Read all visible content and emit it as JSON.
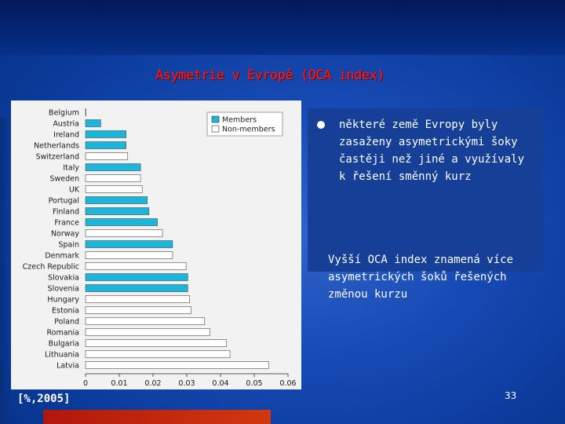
{
  "slide": {
    "title": "Asymetrie v Evropě (OCA index)",
    "source_label": "[%,2005]",
    "bullet_text": "některé země Evropy byly zasaženy asymetrickými šoky častěji než jiné a využívaly k řešení směnný kurz",
    "note_text": "Vyšší OCA index znamená více asymetrických šoků řešených změnou kurzu",
    "page_number": "33"
  },
  "colors": {
    "members": "#1ab6dc",
    "non_members": "#ffffff",
    "title": "#ff1a1a"
  },
  "chart_data": {
    "type": "bar",
    "orientation": "horizontal",
    "categories": [
      "Belgium",
      "Austria",
      "Ireland",
      "Netherlands",
      "Switzerland",
      "Italy",
      "Sweden",
      "UK",
      "Portugal",
      "Finland",
      "France",
      "Norway",
      "Spain",
      "Denmark",
      "Czech Republic",
      "Slovakia",
      "Slovenia",
      "Hungary",
      "Estonia",
      "Poland",
      "Romania",
      "Bulgaria",
      "Lithuania",
      "Latvia"
    ],
    "values": [
      0.0,
      0.0045,
      0.012,
      0.012,
      0.0125,
      0.0163,
      0.0163,
      0.0168,
      0.0183,
      0.0188,
      0.0213,
      0.0228,
      0.0258,
      0.0258,
      0.0298,
      0.0303,
      0.0303,
      0.0308,
      0.0313,
      0.0353,
      0.0368,
      0.0418,
      0.0428,
      0.0543
    ],
    "membership": [
      "Members",
      "Members",
      "Members",
      "Members",
      "Non-members",
      "Members",
      "Non-members",
      "Non-members",
      "Members",
      "Members",
      "Members",
      "Non-members",
      "Members",
      "Non-members",
      "Non-members",
      "Members",
      "Members",
      "Non-members",
      "Non-members",
      "Non-members",
      "Non-members",
      "Non-members",
      "Non-members",
      "Non-members"
    ],
    "legend": [
      "Members",
      "Non-members"
    ],
    "legend_position": "top-right",
    "xlim": [
      0,
      0.06
    ],
    "xticks": [
      "0",
      "0.01",
      "0.02",
      "0.03",
      "0.04",
      "0.05",
      "0.06"
    ],
    "grid": false
  }
}
